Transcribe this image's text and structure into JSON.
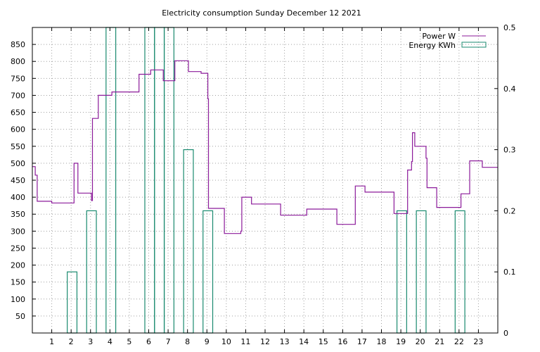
{
  "chart_data": {
    "type": "line",
    "title": "Electricity consumption Sunday December 12 2021",
    "xlim": [
      0,
      24
    ],
    "x_ticks": [
      1,
      2,
      3,
      4,
      5,
      6,
      7,
      8,
      9,
      10,
      11,
      12,
      13,
      14,
      15,
      16,
      17,
      18,
      19,
      20,
      21,
      22,
      23
    ],
    "ylim_left": [
      0,
      900
    ],
    "y_ticks_left": [
      50,
      100,
      150,
      200,
      250,
      300,
      350,
      400,
      450,
      500,
      550,
      600,
      650,
      700,
      750,
      800,
      850
    ],
    "ylim_right": [
      0,
      0.5
    ],
    "y_ticks_right": [
      0,
      0.1,
      0.2,
      0.3,
      0.4,
      0.5
    ],
    "grid": true,
    "legend_position": "top-right",
    "colors": {
      "power": "#8b1a9a",
      "energy": "#1a8a6f"
    },
    "series": [
      {
        "name": "Power W",
        "type": "step-line",
        "axis": "left",
        "points": [
          [
            0.0,
            490
          ],
          [
            0.15,
            490
          ],
          [
            0.15,
            465
          ],
          [
            0.25,
            465
          ],
          [
            0.25,
            388
          ],
          [
            1.0,
            388
          ],
          [
            1.0,
            383
          ],
          [
            2.15,
            383
          ],
          [
            2.15,
            500
          ],
          [
            2.35,
            500
          ],
          [
            2.35,
            412
          ],
          [
            3.05,
            412
          ],
          [
            3.05,
            390
          ],
          [
            3.1,
            390
          ],
          [
            3.1,
            632
          ],
          [
            3.4,
            632
          ],
          [
            3.4,
            700
          ],
          [
            4.1,
            700
          ],
          [
            4.1,
            710
          ],
          [
            5.5,
            710
          ],
          [
            5.5,
            762
          ],
          [
            6.1,
            762
          ],
          [
            6.1,
            775
          ],
          [
            6.75,
            775
          ],
          [
            6.75,
            743
          ],
          [
            7.35,
            743
          ],
          [
            7.35,
            802
          ],
          [
            8.05,
            802
          ],
          [
            8.05,
            770
          ],
          [
            8.7,
            770
          ],
          [
            8.7,
            765
          ],
          [
            9.05,
            765
          ],
          [
            9.05,
            690
          ],
          [
            9.08,
            690
          ],
          [
            9.08,
            367
          ],
          [
            9.9,
            367
          ],
          [
            9.9,
            293
          ],
          [
            10.75,
            293
          ],
          [
            10.75,
            300
          ],
          [
            10.8,
            300
          ],
          [
            10.8,
            400
          ],
          [
            11.3,
            400
          ],
          [
            11.3,
            380
          ],
          [
            12.8,
            380
          ],
          [
            12.8,
            347
          ],
          [
            14.15,
            347
          ],
          [
            14.15,
            365
          ],
          [
            15.7,
            365
          ],
          [
            15.7,
            320
          ],
          [
            16.65,
            320
          ],
          [
            16.65,
            433
          ],
          [
            17.15,
            433
          ],
          [
            17.15,
            415
          ],
          [
            18.65,
            415
          ],
          [
            18.65,
            352
          ],
          [
            19.35,
            352
          ],
          [
            19.35,
            480
          ],
          [
            19.55,
            480
          ],
          [
            19.55,
            505
          ],
          [
            19.6,
            505
          ],
          [
            19.6,
            590
          ],
          [
            19.72,
            590
          ],
          [
            19.72,
            550
          ],
          [
            20.3,
            550
          ],
          [
            20.3,
            515
          ],
          [
            20.35,
            515
          ],
          [
            20.35,
            428
          ],
          [
            20.85,
            428
          ],
          [
            20.85,
            370
          ],
          [
            22.1,
            370
          ],
          [
            22.1,
            410
          ],
          [
            22.55,
            410
          ],
          [
            22.55,
            507
          ],
          [
            23.2,
            507
          ],
          [
            23.2,
            488
          ],
          [
            24.0,
            488
          ]
        ]
      },
      {
        "name": "Energy KWh",
        "type": "impulse-bars",
        "axis": "right",
        "bars": [
          {
            "x0": 1.8,
            "x1": 2.3,
            "value": 0.1
          },
          {
            "x0": 2.8,
            "x1": 3.3,
            "value": 0.2
          },
          {
            "x0": 3.8,
            "x1": 4.3,
            "value": 0.5
          },
          {
            "x0": 5.8,
            "x1": 6.3,
            "value": 0.5
          },
          {
            "x0": 6.3,
            "x1": 6.8,
            "value": 0.5
          },
          {
            "x0": 6.8,
            "x1": 7.3,
            "value": 0.5
          },
          {
            "x0": 7.8,
            "x1": 8.3,
            "value": 0.3
          },
          {
            "x0": 8.8,
            "x1": 9.3,
            "value": 0.2
          },
          {
            "x0": 18.8,
            "x1": 19.3,
            "value": 0.2
          },
          {
            "x0": 19.8,
            "x1": 20.3,
            "value": 0.2
          },
          {
            "x0": 21.8,
            "x1": 22.3,
            "value": 0.2
          }
        ]
      }
    ]
  }
}
